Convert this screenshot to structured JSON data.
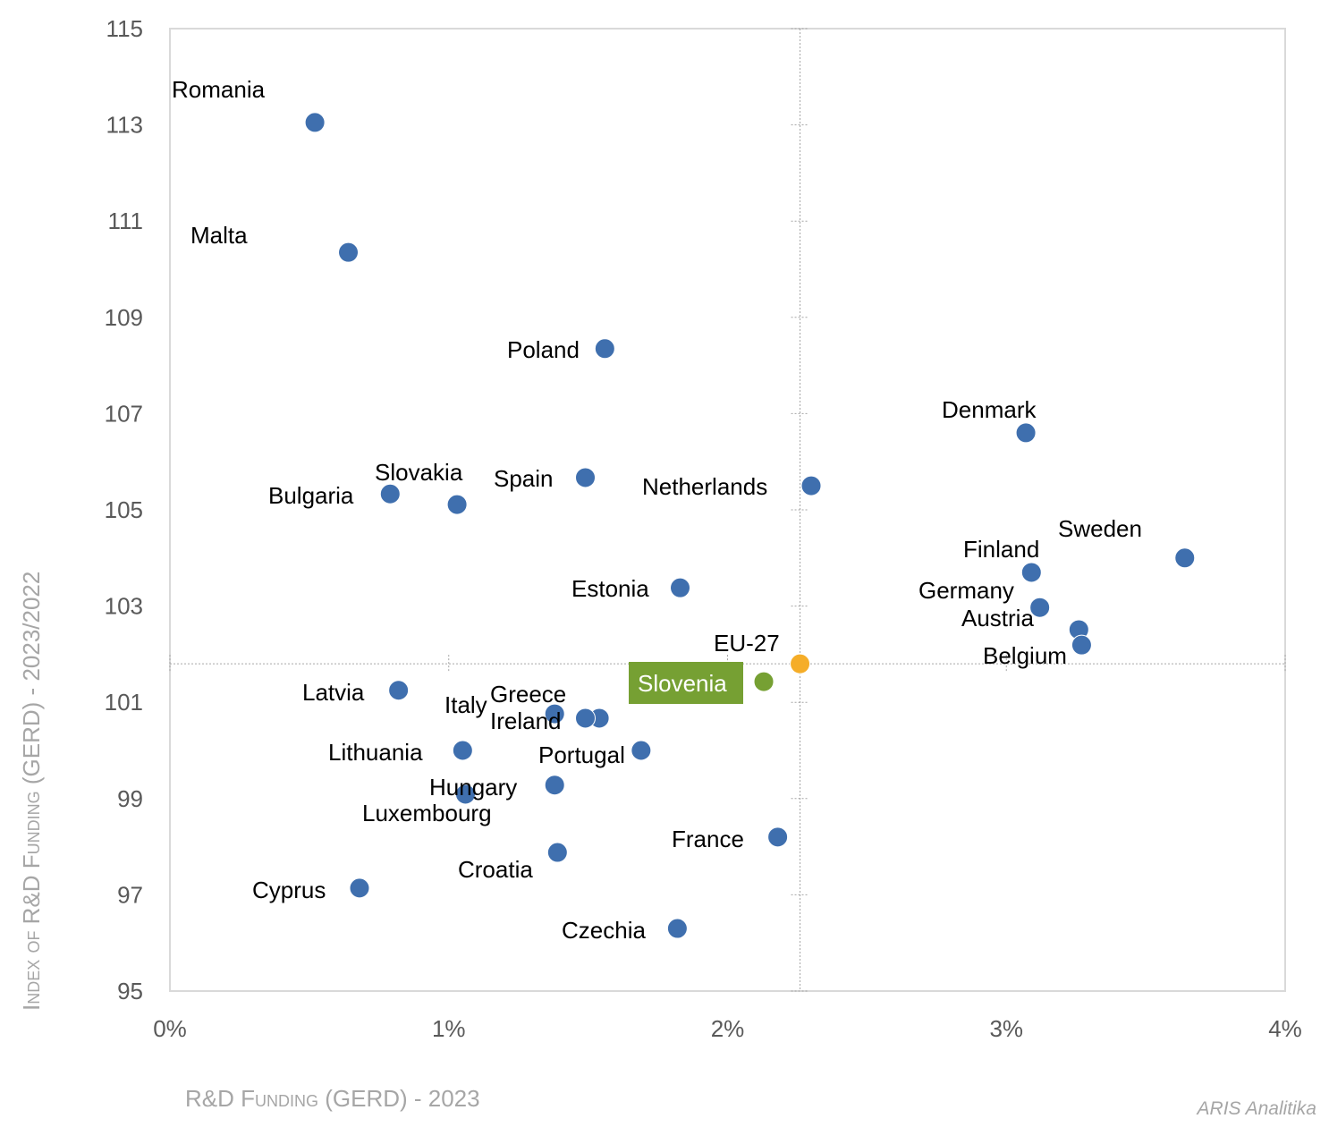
{
  "chart_data": {
    "type": "scatter",
    "title": "",
    "xlabel": "R&D Funding  (GERD) - 2023",
    "ylabel": "Index of R&D Funding  (GERD) - 2023/2022",
    "xlim": [
      0,
      4
    ],
    "ylim": [
      95,
      115
    ],
    "x_unit": "%",
    "x_ticks": [
      "0%",
      "1%",
      "2%",
      "3%",
      "4%"
    ],
    "y_ticks": [
      "95",
      "97",
      "99",
      "101",
      "103",
      "105",
      "107",
      "109",
      "111",
      "113",
      "115"
    ],
    "grid": false,
    "legend": "none",
    "reference_lines": {
      "x": 2.26,
      "y": 101.8,
      "style": "dotted",
      "source": "EU-27"
    },
    "colors": {
      "default": "#3f6fae",
      "eu": "#f5ad28",
      "highlight": "#76a033",
      "highlight_label_bg": "#76a033",
      "highlight_label_text": "#ffffff"
    },
    "points": [
      {
        "name": "Romania",
        "x": 0.52,
        "y": 113.05,
        "group": "default"
      },
      {
        "name": "Malta",
        "x": 0.64,
        "y": 110.35,
        "group": "default"
      },
      {
        "name": "Poland",
        "x": 1.56,
        "y": 108.35,
        "group": "default"
      },
      {
        "name": "Denmark",
        "x": 3.07,
        "y": 106.6,
        "group": "default"
      },
      {
        "name": "Spain",
        "x": 1.49,
        "y": 105.67,
        "group": "default"
      },
      {
        "name": "Netherlands",
        "x": 2.3,
        "y": 105.5,
        "group": "default"
      },
      {
        "name": "Bulgaria",
        "x": 0.79,
        "y": 105.33,
        "group": "default"
      },
      {
        "name": "Slovakia",
        "x": 1.03,
        "y": 105.11,
        "group": "default"
      },
      {
        "name": "Sweden",
        "x": 3.64,
        "y": 104.0,
        "group": "default"
      },
      {
        "name": "Finland",
        "x": 3.09,
        "y": 103.7,
        "group": "default"
      },
      {
        "name": "Estonia",
        "x": 1.83,
        "y": 103.38,
        "group": "default"
      },
      {
        "name": "Germany",
        "x": 3.12,
        "y": 102.97,
        "group": "default"
      },
      {
        "name": "Austria",
        "x": 3.26,
        "y": 102.51,
        "group": "default"
      },
      {
        "name": "Belgium",
        "x": 3.27,
        "y": 102.19,
        "group": "default"
      },
      {
        "name": "EU-27",
        "x": 2.26,
        "y": 101.8,
        "group": "eu"
      },
      {
        "name": "Slovenia",
        "x": 2.13,
        "y": 101.43,
        "group": "highlight"
      },
      {
        "name": "Latvia",
        "x": 0.82,
        "y": 101.25,
        "group": "default"
      },
      {
        "name": "Italy",
        "x": 1.38,
        "y": 100.76,
        "group": "default"
      },
      {
        "name": "Greece",
        "x": 1.54,
        "y": 100.67,
        "group": "default"
      },
      {
        "name": "Ireland",
        "x": 1.49,
        "y": 100.67,
        "group": "default"
      },
      {
        "name": "Lithuania",
        "x": 1.05,
        "y": 100.0,
        "group": "default"
      },
      {
        "name": "Portugal",
        "x": 1.69,
        "y": 100.0,
        "group": "default"
      },
      {
        "name": "Hungary",
        "x": 1.38,
        "y": 99.28,
        "group": "default"
      },
      {
        "name": "Luxembourg",
        "x": 1.06,
        "y": 99.09,
        "group": "default"
      },
      {
        "name": "France",
        "x": 2.18,
        "y": 98.2,
        "group": "default"
      },
      {
        "name": "Croatia",
        "x": 1.39,
        "y": 97.88,
        "group": "default"
      },
      {
        "name": "Cyprus",
        "x": 0.68,
        "y": 97.14,
        "group": "default"
      },
      {
        "name": "Czechia",
        "x": 1.82,
        "y": 96.3,
        "group": "default"
      }
    ]
  },
  "watermark": "ARIS Analitika"
}
